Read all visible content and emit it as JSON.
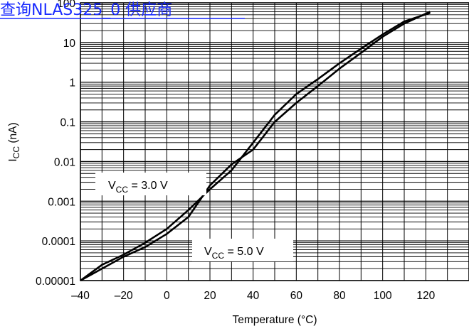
{
  "link_banner": {
    "text": "查询NLAS325_0 供应商"
  },
  "chart_data": {
    "type": "line",
    "title": "",
    "xlabel": "Temperature (°C)",
    "ylabel": {
      "main": "I",
      "sub": "CC",
      "unit": " (nA)"
    },
    "xlim": [
      -40,
      140
    ],
    "xticks": [
      -40,
      -20,
      0,
      20,
      40,
      60,
      80,
      100,
      120
    ],
    "xtick_labels": [
      "–40",
      "–20",
      "0",
      "20",
      "40",
      "60",
      "80",
      "100",
      "120"
    ],
    "y_scale": "log",
    "ylim": [
      1e-05,
      100
    ],
    "ytick_labels": [
      "0.00001",
      "0.0001",
      "0.001",
      "0.01",
      "0.1",
      "1",
      "10",
      "100"
    ],
    "grid": true,
    "series": [
      {
        "name": "VCC = 3.0 V",
        "x": [
          -40,
          -30,
          -20,
          -10,
          0,
          10,
          20,
          30,
          40,
          50,
          60,
          70,
          80,
          90,
          100,
          110,
          122
        ],
        "y": [
          1e-05,
          2e-05,
          4e-05,
          7e-05,
          0.00015,
          0.0004,
          0.0025,
          0.0085,
          0.02,
          0.1,
          0.3,
          0.8,
          2.2,
          5.5,
          14,
          30,
          60
        ]
      },
      {
        "name": "VCC = 5.0 V",
        "x": [
          -40,
          -30,
          -20,
          -10,
          0,
          10,
          20,
          30,
          40,
          50,
          60,
          70,
          80,
          90,
          100,
          110,
          122
        ],
        "y": [
          1e-05,
          2.5e-05,
          4.5e-05,
          9e-05,
          0.0002,
          0.0006,
          0.002,
          0.006,
          0.03,
          0.15,
          0.5,
          1.2,
          3,
          7,
          16,
          34,
          56
        ]
      }
    ],
    "annotations": [
      {
        "main": "V",
        "sub": "CC",
        "rest": " = 3.0 V"
      },
      {
        "main": "V",
        "sub": "CC",
        "rest": " = 5.0 V"
      }
    ],
    "colors": {
      "line": "#000000",
      "grid": "#000000",
      "link": "#1a2bff"
    }
  }
}
